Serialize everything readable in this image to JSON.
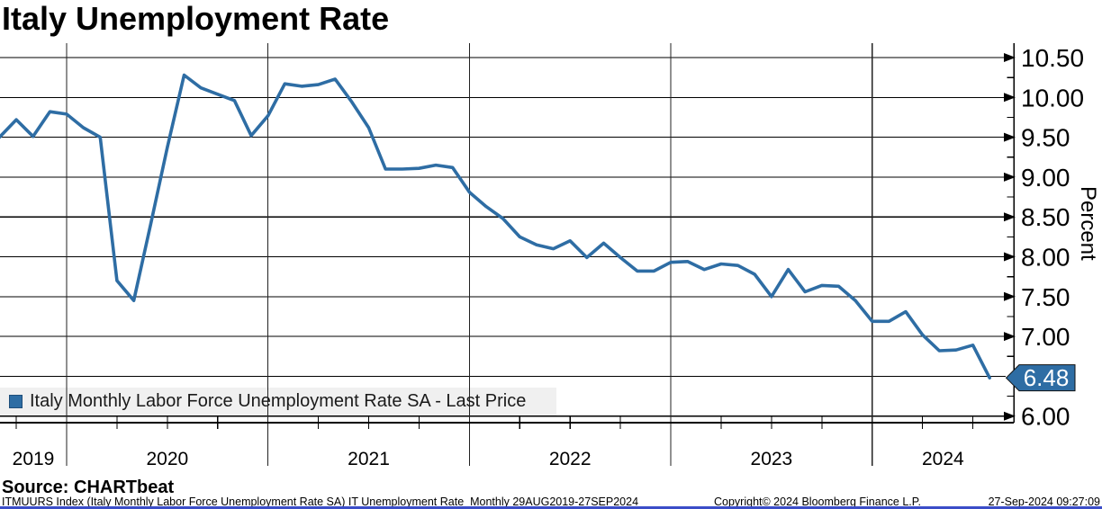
{
  "header": {
    "title": "Italy Unemployment Rate"
  },
  "legend": {
    "label": "Italy Monthly Labor Force Unemployment Rate SA - Last Price",
    "swatch_color": "#2e6da4"
  },
  "source": {
    "label": "Source: CHARTbeat"
  },
  "footer": {
    "left": "ITMUURS Index (Italy Monthly Labor Force Unemployment Rate SA) IT Unemployment Rate  Monthly 29AUG2019-27SEP2024",
    "copyright": "Copyright© 2024 Bloomberg Finance L.P.",
    "timestamp": "27-Sep-2024 09:27:09"
  },
  "chart_data": {
    "type": "line",
    "title": "Italy Unemployment Rate",
    "series_name": "Italy Monthly Labor Force Unemployment Rate SA - Last Price",
    "frequency": "monthly",
    "period": "29AUG2019-27SEP2024",
    "xlabel": "",
    "ylabel": "Percent",
    "ylim": [
      5.8,
      10.6
    ],
    "grid": true,
    "legend_position": "bottom-left",
    "line_color": "#2e6da4",
    "last_price": 6.48,
    "last_label": "6.48",
    "y_ticks": [
      {
        "value": 10.5,
        "label": "10.50"
      },
      {
        "value": 10.0,
        "label": "10.00"
      },
      {
        "value": 9.5,
        "label": "9.50"
      },
      {
        "value": 9.0,
        "label": "9.00"
      },
      {
        "value": 8.5,
        "label": "8.50"
      },
      {
        "value": 8.0,
        "label": "8.00"
      },
      {
        "value": 7.5,
        "label": "7.50"
      },
      {
        "value": 7.0,
        "label": "7.00"
      },
      {
        "value": 6.5,
        "label": ""
      },
      {
        "value": 6.0,
        "label": "6.00"
      }
    ],
    "x_year_labels": [
      "2019",
      "2020",
      "2021",
      "2022",
      "2023",
      "2024"
    ],
    "months": [
      "2019-09",
      "2019-10",
      "2019-11",
      "2019-12",
      "2020-01",
      "2020-02",
      "2020-03",
      "2020-04",
      "2020-05",
      "2020-06",
      "2020-07",
      "2020-08",
      "2020-09",
      "2020-10",
      "2020-11",
      "2020-12",
      "2021-01",
      "2021-02",
      "2021-03",
      "2021-04",
      "2021-05",
      "2021-06",
      "2021-07",
      "2021-08",
      "2021-09",
      "2021-10",
      "2021-11",
      "2021-12",
      "2022-01",
      "2022-02",
      "2022-03",
      "2022-04",
      "2022-05",
      "2022-06",
      "2022-07",
      "2022-08",
      "2022-09",
      "2022-10",
      "2022-11",
      "2022-12",
      "2023-01",
      "2023-02",
      "2023-03",
      "2023-04",
      "2023-05",
      "2023-06",
      "2023-07",
      "2023-08",
      "2023-09",
      "2023-10",
      "2023-11",
      "2023-12",
      "2024-01",
      "2024-02",
      "2024-03",
      "2024-04",
      "2024-05",
      "2024-06",
      "2024-07",
      "2024-08"
    ],
    "values": [
      9.5,
      9.72,
      9.51,
      9.82,
      9.79,
      9.62,
      9.5,
      7.7,
      7.45,
      8.4,
      9.37,
      10.28,
      10.12,
      10.04,
      9.96,
      9.52,
      9.77,
      10.17,
      10.14,
      10.16,
      10.23,
      9.94,
      9.62,
      9.1,
      9.1,
      9.11,
      9.15,
      9.12,
      8.81,
      8.63,
      8.48,
      8.25,
      8.15,
      8.1,
      8.2,
      7.99,
      8.17,
      7.99,
      7.82,
      7.82,
      7.93,
      7.94,
      7.84,
      7.91,
      7.89,
      7.78,
      7.5,
      7.84,
      7.56,
      7.64,
      7.63,
      7.45,
      7.19,
      7.19,
      7.31,
      7.02,
      6.82,
      6.83,
      6.89,
      6.48
    ]
  }
}
